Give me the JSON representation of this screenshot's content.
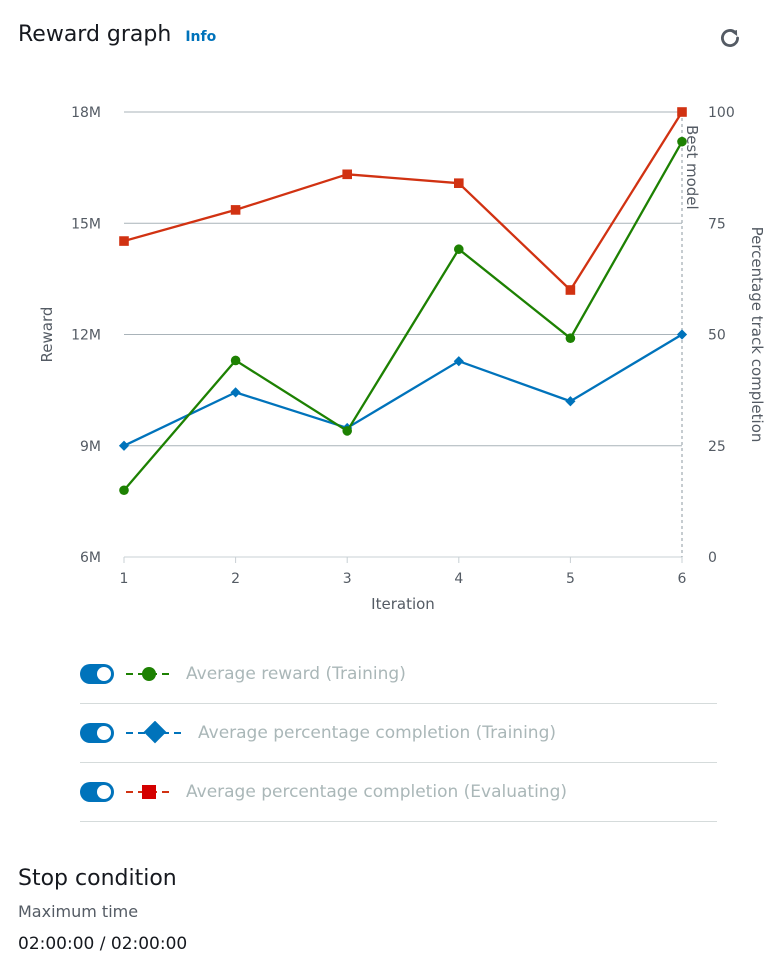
{
  "header": {
    "title": "Reward graph",
    "info_label": "Info"
  },
  "chart_data": {
    "type": "line",
    "x": [
      1,
      2,
      3,
      4,
      5,
      6
    ],
    "xlabel": "Iteration",
    "ylabel": "Reward",
    "y2label": "Percentage track completion",
    "ylim": [
      6000000,
      18000000
    ],
    "y2lim": [
      0,
      100
    ],
    "yticks": [
      "6M",
      "9M",
      "12M",
      "15M",
      "18M"
    ],
    "y2ticks": [
      "0",
      "25",
      "50",
      "75",
      "100"
    ],
    "best_model_label": "Best model",
    "best_model_iteration": 6,
    "grid": true,
    "series": [
      {
        "name": "Average reward (Training)",
        "axis": "left",
        "marker": "circle",
        "color": "#1d8102",
        "values": [
          7800000,
          11300000,
          9400000,
          14300000,
          11900000,
          17200000
        ]
      },
      {
        "name": "Average percentage completion (Training)",
        "axis": "right",
        "marker": "diamond",
        "color": "#0073bb",
        "values": [
          25,
          37,
          29,
          44,
          35,
          50
        ]
      },
      {
        "name": "Average percentage completion (Evaluating)",
        "axis": "right",
        "marker": "square",
        "color": "#d13212",
        "values": [
          71,
          78,
          86,
          84,
          60,
          100
        ]
      }
    ]
  },
  "legend": [
    {
      "label": "Average reward (Training)",
      "marker": "circle",
      "color": "#1d8102"
    },
    {
      "label": "Average percentage completion (Training)",
      "marker": "diamond",
      "color": "#0073bb"
    },
    {
      "label": "Average percentage completion (Evaluating)",
      "marker": "square",
      "color": "#d13212"
    }
  ],
  "stop_condition": {
    "title": "Stop condition",
    "subtitle": "Maximum time",
    "value": "02:00:00 / 02:00:00"
  }
}
